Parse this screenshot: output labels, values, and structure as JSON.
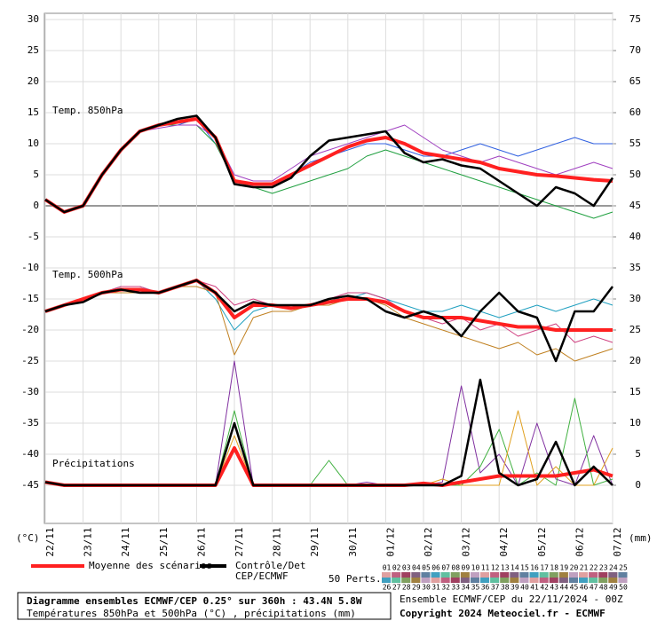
{
  "chart_data": {
    "type": "line",
    "ylabel": "(°C)",
    "y2label": "(mm)",
    "annotations": [
      "Temp. 850hPa",
      "Temp. 500hPa",
      "Précipitations"
    ],
    "xlim": [
      0,
      360
    ],
    "xticks": [
      {
        "value": 0,
        "label": "22/11"
      },
      {
        "value": 24,
        "label": "23/11"
      },
      {
        "value": 48,
        "label": "24/11"
      },
      {
        "value": 72,
        "label": "25/11"
      },
      {
        "value": 96,
        "label": "26/11"
      },
      {
        "value": 120,
        "label": "27/11"
      },
      {
        "value": 144,
        "label": "28/11"
      },
      {
        "value": 168,
        "label": "29/11"
      },
      {
        "value": 192,
        "label": "30/11"
      },
      {
        "value": 216,
        "label": "01/12"
      },
      {
        "value": 240,
        "label": "02/12"
      },
      {
        "value": 264,
        "label": "03/12"
      },
      {
        "value": 288,
        "label": "04/12"
      },
      {
        "value": 312,
        "label": "05/12"
      },
      {
        "value": 336,
        "label": "06/12"
      },
      {
        "value": 360,
        "label": "07/12"
      }
    ],
    "ylim": [
      -50,
      30
    ],
    "yticks": [
      30,
      25,
      20,
      15,
      10,
      5,
      0,
      -5,
      -10,
      -15,
      -20,
      -25,
      -30,
      -35,
      -40,
      -45
    ],
    "y2lim": [
      -5,
      75
    ],
    "y2ticks": [
      75,
      70,
      65,
      60,
      55,
      50,
      45,
      40,
      35,
      30,
      25,
      20,
      15,
      10,
      5,
      0
    ],
    "grid": true,
    "x": [
      0,
      12,
      24,
      36,
      48,
      60,
      72,
      84,
      96,
      108,
      120,
      132,
      144,
      156,
      168,
      180,
      192,
      204,
      216,
      228,
      240,
      252,
      264,
      276,
      288,
      300,
      312,
      324,
      336,
      348,
      360
    ],
    "series": [
      {
        "color": "#3060e0",
        "width": 1,
        "values": [
          1,
          -1,
          0,
          5,
          9,
          12,
          13,
          13,
          14,
          10,
          4,
          3,
          3,
          5,
          7,
          8,
          9,
          10,
          10,
          9,
          8,
          8,
          9,
          10,
          9,
          8,
          9,
          10,
          11,
          10,
          10
        ]
      },
      {
        "color": "#20a040",
        "width": 1,
        "values": [
          1,
          -1,
          0,
          5,
          9,
          12,
          13,
          13,
          13,
          10,
          4,
          3,
          2,
          3,
          4,
          5,
          6,
          8,
          9,
          8,
          7,
          6,
          5,
          4,
          3,
          2,
          1,
          0,
          -1,
          -2,
          -1
        ]
      },
      {
        "color": "#a040c0",
        "width": 1,
        "values": [
          1,
          -1,
          0,
          5,
          9,
          12,
          12.5,
          13,
          13,
          11,
          5,
          4,
          4,
          6,
          8,
          9,
          10,
          11,
          12,
          13,
          11,
          9,
          8,
          7,
          8,
          7,
          6,
          5,
          6,
          7,
          6
        ]
      },
      {
        "color": "#20a0c0",
        "width": 1,
        "values": [
          -17,
          -16,
          -15,
          -14,
          -13,
          -13,
          -14,
          -13,
          -12,
          -15,
          -20,
          -17,
          -16,
          -16,
          -16,
          -15,
          -15,
          -14,
          -15,
          -16,
          -17,
          -17,
          -16,
          -17,
          -18,
          -17,
          -16,
          -17,
          -16,
          -15,
          -16
        ]
      },
      {
        "color": "#c08020",
        "width": 1,
        "values": [
          -17,
          -16,
          -15,
          -14,
          -14,
          -14,
          -14,
          -13,
          -13,
          -14,
          -24,
          -18,
          -17,
          -17,
          -16,
          -16,
          -15,
          -15,
          -16,
          -18,
          -19,
          -20,
          -21,
          -22,
          -23,
          -22,
          -24,
          -23,
          -25,
          -24,
          -23
        ]
      },
      {
        "color": "#d04080",
        "width": 1,
        "values": [
          -17,
          -16,
          -15,
          -14,
          -13,
          -13,
          -14,
          -13,
          -12,
          -13,
          -16,
          -15,
          -16,
          -16,
          -16,
          -15,
          -14,
          -14,
          -15,
          -17,
          -18,
          -19,
          -18,
          -20,
          -19,
          -21,
          -20,
          -19,
          -22,
          -21,
          -22
        ]
      },
      {
        "color": "#8030a0",
        "width": 1,
        "axis": "y2",
        "values": [
          0.5,
          0,
          0,
          0,
          0,
          0,
          0,
          0,
          0,
          0,
          20,
          0,
          0,
          0,
          0,
          0,
          0,
          0.5,
          0,
          0,
          0,
          0.5,
          16,
          2,
          5,
          0,
          10,
          1,
          0,
          8,
          0
        ]
      },
      {
        "color": "#40b040",
        "width": 1,
        "axis": "y2",
        "values": [
          0.5,
          0,
          0,
          0,
          0,
          0,
          0,
          0,
          0,
          0,
          12,
          0,
          0,
          0,
          0,
          4,
          0,
          0,
          0,
          0,
          0,
          0,
          0,
          3,
          9,
          0,
          2,
          0,
          14,
          0,
          1
        ]
      },
      {
        "color": "#e0a020",
        "width": 1,
        "axis": "y2",
        "values": [
          0.5,
          0,
          0,
          0,
          0,
          0,
          0,
          0,
          0,
          0,
          8,
          0,
          0,
          0,
          0,
          0,
          0,
          0,
          0,
          0,
          0,
          1,
          0,
          0,
          0,
          12,
          0,
          3,
          0,
          0,
          6
        ]
      },
      {
        "color": "#ff2020",
        "width": 4,
        "values": [
          1,
          -1,
          0,
          5,
          9,
          12,
          13,
          13.5,
          14,
          11,
          4,
          3.5,
          3.5,
          5,
          6.5,
          8,
          9.5,
          10.5,
          11,
          10,
          8.5,
          8,
          7.5,
          7,
          6,
          5.5,
          5,
          4.8,
          4.5,
          4.2,
          4
        ]
      },
      {
        "color": "#000000",
        "width": 2.5,
        "values": [
          1,
          -1,
          0,
          5,
          9,
          12,
          13,
          14,
          14.5,
          11,
          3.5,
          3,
          3,
          4.5,
          8,
          10.5,
          11,
          11.5,
          12,
          8.5,
          7,
          7.5,
          6.5,
          6,
          4,
          2,
          0,
          3,
          2,
          0,
          4.5
        ]
      },
      {
        "color": "#ff2020",
        "width": 4,
        "values": [
          -17,
          -16,
          -15,
          -14,
          -13.5,
          -13.5,
          -14,
          -13,
          -12,
          -14,
          -18,
          -16,
          -16,
          -16.5,
          -16,
          -15.5,
          -15,
          -15,
          -15.5,
          -17,
          -18,
          -18,
          -18,
          -18.5,
          -19,
          -19.5,
          -19.5,
          -20,
          -20,
          -20,
          -20
        ]
      },
      {
        "color": "#000000",
        "width": 2.5,
        "values": [
          -17,
          -16,
          -15.5,
          -14,
          -13.5,
          -14,
          -14,
          -13,
          -12,
          -14,
          -17,
          -15.5,
          -16,
          -16,
          -16,
          -15,
          -14.5,
          -15,
          -17,
          -18,
          -17,
          -18,
          -21,
          -17,
          -14,
          -17,
          -18,
          -25,
          -17,
          -17,
          -13
        ]
      },
      {
        "color": "#ff2020",
        "width": 4,
        "axis": "y2",
        "values": [
          0.5,
          0,
          0,
          0,
          0,
          0,
          0,
          0,
          0,
          0,
          6,
          0,
          0,
          0,
          0,
          0,
          0,
          0,
          0,
          0,
          0.3,
          0,
          0.5,
          1,
          1.5,
          1.5,
          1.5,
          1.5,
          2,
          2.5,
          1.5
        ]
      },
      {
        "color": "#000000",
        "width": 2.5,
        "axis": "y2",
        "values": [
          0.5,
          0,
          0,
          0,
          0,
          0,
          0,
          0,
          0,
          0,
          10,
          0,
          0,
          0,
          0,
          0,
          0,
          0,
          0,
          0,
          0,
          0,
          1.5,
          17,
          2,
          0,
          1,
          7,
          0,
          3,
          0
        ]
      }
    ],
    "legend": [
      {
        "label": "Moyenne des scénarios",
        "color": "#ff2020"
      },
      {
        "label": "Contrôle/Det",
        "label2": "CEP/ECMWF",
        "color": "#000000"
      }
    ],
    "perts": {
      "label": "50 Perts.",
      "palette": [
        "#e0a0a0",
        "#c06080",
        "#a04060",
        "#806080",
        "#6080a0",
        "#40a0c0",
        "#60c0a0",
        "#80a060",
        "#a08040",
        "#c0a0c0"
      ],
      "labels": [
        "01",
        "02",
        "03",
        "04",
        "05",
        "06",
        "07",
        "08",
        "09",
        "10",
        "11",
        "12",
        "13",
        "14",
        "15",
        "16",
        "17",
        "18",
        "19",
        "20",
        "21",
        "22",
        "23",
        "24",
        "25",
        "26",
        "27",
        "28",
        "29",
        "30",
        "31",
        "32",
        "33",
        "34",
        "35",
        "36",
        "37",
        "38",
        "39",
        "40",
        "41",
        "42",
        "43",
        "44",
        "45",
        "46",
        "47",
        "48",
        "49",
        "50"
      ]
    }
  },
  "footer": {
    "title": "Diagramme ensembles ECMWF/CEP 0.25° sur 360h : 43.4N 5.8W",
    "subtitle": "Températures 850hPa et 500hPa (°C) , précipitations (mm)",
    "run": "Ensemble ECMWF/CEP du 22/11/2024 - 00Z",
    "copyright": "Copyright 2024 Meteociel.fr - ECMWF"
  }
}
